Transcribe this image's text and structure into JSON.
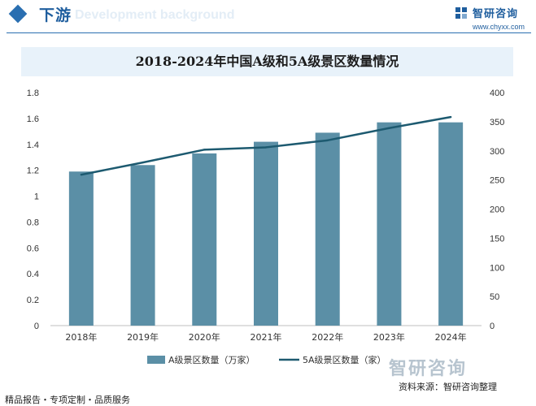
{
  "header": {
    "title": "下游",
    "subtitle": "Development background",
    "logo_text": "智研咨询",
    "url": "www.chyxx.com"
  },
  "footer": {
    "left": "精品报告・专项定制・品质服务",
    "source": "资料来源：智研咨询整理",
    "brand": "智研咨询"
  },
  "colors": {
    "bar": "#5b8fa6",
    "line": "#1d5a70",
    "accent": "#1f5e9e"
  },
  "chart_data": {
    "type": "bar",
    "title": "2018-2024年中国A级和5A级景区数量情况",
    "categories": [
      "2018年",
      "2019年",
      "2020年",
      "2021年",
      "2022年",
      "2023年",
      "2024年"
    ],
    "series": [
      {
        "name": "A级景区数量（万家）",
        "type": "bar",
        "axis": "left",
        "values": [
          1.19,
          1.24,
          1.33,
          1.42,
          1.49,
          1.57,
          1.57
        ]
      },
      {
        "name": "5A级景区数量（家）",
        "type": "line",
        "axis": "right",
        "values": [
          259,
          280,
          302,
          306,
          318,
          339,
          358
        ]
      }
    ],
    "y_left": {
      "min": 0,
      "max": 1.8,
      "ticks": [
        "0",
        "0.2",
        "0.4",
        "0.6",
        "0.8",
        "1",
        "1.2",
        "1.4",
        "1.6",
        "1.8"
      ]
    },
    "y_right": {
      "min": 0,
      "max": 400,
      "ticks": [
        "0",
        "50",
        "100",
        "150",
        "200",
        "250",
        "300",
        "350",
        "400"
      ]
    },
    "grid": false,
    "legend": "bottom"
  }
}
